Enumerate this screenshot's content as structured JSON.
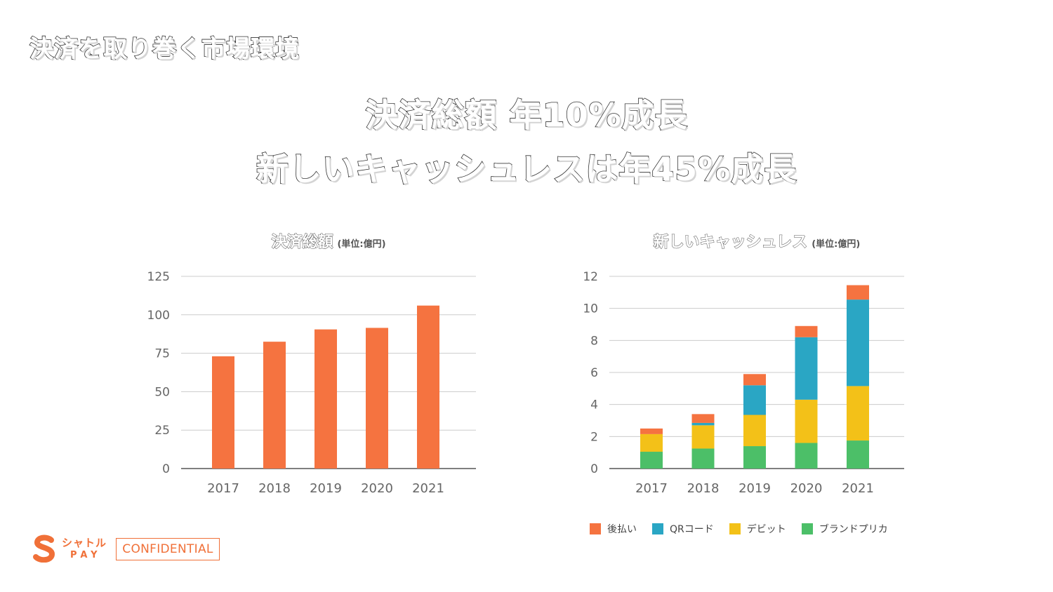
{
  "page_title": "決済を取り巻く市場環境",
  "headlines": [
    "決済総額 年10%成長",
    "新しいキャッシュレスは年45%成長"
  ],
  "colors": {
    "bar": "#f57340",
    "atobarai": "#f57340",
    "qr": "#2aa6c4",
    "debit": "#f3c118",
    "prepaid": "#4cbf68",
    "grid": "#cccccc",
    "axis_text": "#666666",
    "brand": "#f07038"
  },
  "chart_data": [
    {
      "type": "bar",
      "title": "決済総額",
      "unit_label": "(単位:億円)",
      "categories": [
        "2017",
        "2018",
        "2019",
        "2020",
        "2021"
      ],
      "values": [
        73,
        82.5,
        90.5,
        91.5,
        106
      ],
      "ylim": [
        0,
        125
      ],
      "yticks": [
        0,
        25,
        50,
        75,
        100,
        125
      ],
      "grid": true
    },
    {
      "type": "bar",
      "stacked": true,
      "title": "新しいキャッシュレス",
      "unit_label": "(単位:億円)",
      "categories": [
        "2017",
        "2018",
        "2019",
        "2020",
        "2021"
      ],
      "series": [
        {
          "name": "ブランドプリカ",
          "values": [
            1.05,
            1.25,
            1.4,
            1.6,
            1.75
          ]
        },
        {
          "name": "デビット",
          "values": [
            1.1,
            1.45,
            1.95,
            2.7,
            3.4
          ]
        },
        {
          "name": "QRコード",
          "values": [
            0.0,
            0.15,
            1.85,
            3.9,
            5.4
          ]
        },
        {
          "name": "後払い",
          "values": [
            0.35,
            0.55,
            0.7,
            0.7,
            0.9
          ]
        }
      ],
      "ylim": [
        0,
        12
      ],
      "yticks": [
        0,
        2,
        4,
        6,
        8,
        10,
        12
      ],
      "grid": true,
      "legend_order": [
        "後払い",
        "QRコード",
        "デビット",
        "ブランドプリカ"
      ],
      "legend_position": "bottom"
    }
  ],
  "logo": {
    "line1": "シャトル",
    "line2": "PAY"
  },
  "confidential": "CONFIDENTIAL"
}
